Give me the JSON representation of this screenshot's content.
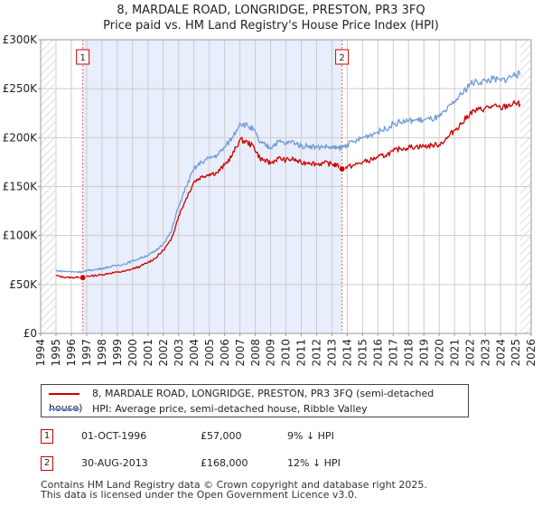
{
  "header": {
    "title_line1": "8, MARDALE ROAD, LONGRIDGE, PRESTON, PR3 3FQ",
    "title_line2": "Price paid vs. HM Land Registry's House Price Index (HPI)"
  },
  "chart_data": {
    "type": "line",
    "title": "8, MARDALE ROAD, LONGRIDGE, PRESTON, PR3 3FQ — Price paid vs. HM Land Registry's House Price Index (HPI)",
    "xlabel": "",
    "ylabel": "",
    "xlim": [
      1994,
      2026
    ],
    "ylim": [
      0,
      300000
    ],
    "x_ticks": [
      1994,
      1995,
      1996,
      1997,
      1998,
      1999,
      2000,
      2001,
      2002,
      2003,
      2004,
      2005,
      2006,
      2007,
      2008,
      2009,
      2010,
      2011,
      2012,
      2013,
      2014,
      2015,
      2016,
      2017,
      2018,
      2019,
      2020,
      2021,
      2022,
      2023,
      2024,
      2025,
      2026
    ],
    "y_ticks": [
      {
        "value": 0,
        "label": "£0"
      },
      {
        "value": 50000,
        "label": "£50K"
      },
      {
        "value": 100000,
        "label": "£100K"
      },
      {
        "value": 150000,
        "label": "£150K"
      },
      {
        "value": 200000,
        "label": "£200K"
      },
      {
        "value": 250000,
        "label": "£250K"
      },
      {
        "value": 300000,
        "label": "£300K"
      }
    ],
    "grid": true,
    "data_range": [
      1995.0,
      2025.3
    ],
    "colors": {
      "property": "#cc0000",
      "hpi": "#6f9bd8",
      "shade": "#e8eefb",
      "marker_line": "#e06666",
      "grid": "#cccccc"
    },
    "series": [
      {
        "name": "8, MARDALE ROAD, LONGRIDGE, PRESTON, PR3 3FQ (semi-detached house)",
        "color": "#cc0000",
        "x": [
          1995.0,
          1995.5,
          1996.0,
          1996.5,
          1996.75,
          1997.0,
          1997.5,
          1998.0,
          1998.5,
          1999.0,
          1999.5,
          2000.0,
          2000.5,
          2001.0,
          2001.5,
          2002.0,
          2002.5,
          2003.0,
          2003.5,
          2004.0,
          2004.5,
          2005.0,
          2005.5,
          2006.0,
          2006.5,
          2007.0,
          2007.5,
          2007.9,
          2008.3,
          2008.7,
          2009.0,
          2009.5,
          2010.0,
          2010.5,
          2011.0,
          2011.5,
          2012.0,
          2012.5,
          2013.0,
          2013.3,
          2013.66,
          2014.0,
          2014.5,
          2015.0,
          2015.5,
          2016.0,
          2016.5,
          2017.0,
          2017.5,
          2018.0,
          2018.5,
          2019.0,
          2019.5,
          2020.0,
          2020.5,
          2021.0,
          2021.5,
          2022.0,
          2022.5,
          2023.0,
          2023.5,
          2024.0,
          2024.5,
          2025.0,
          2025.3
        ],
        "values": [
          59000,
          57500,
          57000,
          57500,
          57000,
          58500,
          59000,
          60000,
          61500,
          62500,
          63500,
          66000,
          68500,
          72500,
          77000,
          85000,
          95000,
          120000,
          138000,
          155000,
          160000,
          163000,
          164000,
          172000,
          182000,
          198000,
          195000,
          191000,
          179000,
          176000,
          174000,
          179000,
          177000,
          178000,
          174000,
          175000,
          173000,
          174000,
          173000,
          172000,
          168000,
          170000,
          172000,
          175000,
          177000,
          180000,
          182000,
          186000,
          189000,
          190000,
          191000,
          191000,
          192000,
          193000,
          199000,
          208000,
          215000,
          225000,
          228000,
          230000,
          232000,
          230000,
          233000,
          235000,
          234000
        ]
      },
      {
        "name": "HPI: Average price, semi-detached house, Ribble Valley",
        "color": "#6f9bd8",
        "x": [
          1995.0,
          1995.5,
          1996.0,
          1996.5,
          1996.75,
          1997.0,
          1997.5,
          1998.0,
          1998.5,
          1999.0,
          1999.5,
          2000.0,
          2000.5,
          2001.0,
          2001.5,
          2002.0,
          2002.5,
          2003.0,
          2003.5,
          2004.0,
          2004.5,
          2005.0,
          2005.5,
          2006.0,
          2006.5,
          2007.0,
          2007.5,
          2007.9,
          2008.3,
          2008.7,
          2009.0,
          2009.5,
          2010.0,
          2010.5,
          2011.0,
          2011.5,
          2012.0,
          2012.5,
          2013.0,
          2013.3,
          2013.66,
          2014.0,
          2014.5,
          2015.0,
          2015.5,
          2016.0,
          2016.5,
          2017.0,
          2017.5,
          2018.0,
          2018.5,
          2019.0,
          2019.5,
          2020.0,
          2020.5,
          2021.0,
          2021.5,
          2022.0,
          2022.5,
          2023.0,
          2023.5,
          2024.0,
          2024.5,
          2025.0,
          2025.3
        ],
        "values": [
          64000,
          63500,
          63000,
          63000,
          62500,
          64500,
          65000,
          66500,
          68000,
          69500,
          71000,
          74000,
          77000,
          80000,
          84000,
          92000,
          103000,
          130000,
          150000,
          168000,
          175000,
          179000,
          182000,
          190000,
          200000,
          215000,
          212000,
          208000,
          195000,
          192000,
          190000,
          196000,
          194000,
          196000,
          191000,
          192000,
          190000,
          191000,
          190000,
          189000,
          190000,
          193000,
          196000,
          200000,
          203000,
          206000,
          209000,
          214000,
          216000,
          217000,
          218000,
          218000,
          219000,
          221000,
          228000,
          237000,
          245000,
          255000,
          257000,
          258000,
          260000,
          258000,
          261000,
          265000,
          264000
        ]
      }
    ],
    "annotations": [
      {
        "id": "1",
        "x": 1996.75,
        "value": 57000,
        "label": "1"
      },
      {
        "id": "2",
        "x": 2013.66,
        "value": 168000,
        "label": "2"
      }
    ]
  },
  "legend": {
    "items": [
      {
        "label": "8, MARDALE ROAD, LONGRIDGE, PRESTON, PR3 3FQ (semi-detached house)",
        "color": "#cc0000"
      },
      {
        "label": "HPI: Average price, semi-detached house, Ribble Valley",
        "color": "#6f9bd8"
      }
    ]
  },
  "transactions": [
    {
      "id": "1",
      "date": "01-OCT-1996",
      "price": "£57,000",
      "hpi": "9% ↓ HPI"
    },
    {
      "id": "2",
      "date": "30-AUG-2013",
      "price": "£168,000",
      "hpi": "12% ↓ HPI"
    }
  ],
  "footer": {
    "line1": "Contains HM Land Registry data © Crown copyright and database right 2025.",
    "line2": "This data is licensed under the Open Government Licence v3.0."
  }
}
